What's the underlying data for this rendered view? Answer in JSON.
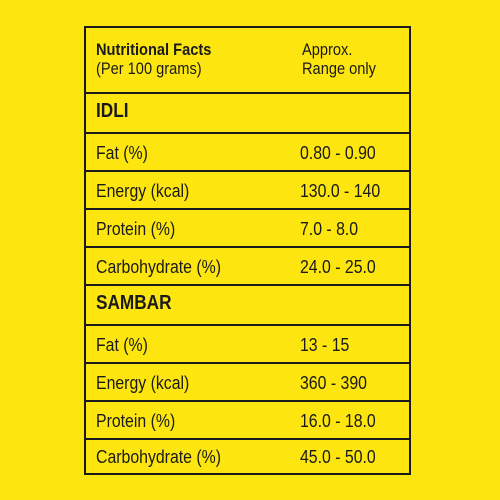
{
  "header": {
    "title": "Nutritional Facts",
    "subtitle": "(Per 100 grams)",
    "note_line1": "Approx.",
    "note_line2": "Range only"
  },
  "sections": [
    {
      "name": "IDLI",
      "rows": [
        {
          "label": "Fat (%)",
          "value": "0.80 - 0.90"
        },
        {
          "label": "Energy (kcal)",
          "value": "130.0 - 140"
        },
        {
          "label": "Protein (%)",
          "value": "7.0 - 8.0"
        },
        {
          "label": "Carbohydrate (%)",
          "value": "24.0 - 25.0"
        }
      ]
    },
    {
      "name": "SAMBAR",
      "rows": [
        {
          "label": "Fat (%)",
          "value": "13 - 15"
        },
        {
          "label": "Energy (kcal)",
          "value": "360 - 390"
        },
        {
          "label": "Protein (%)",
          "value": "16.0 - 18.0"
        },
        {
          "label": "Carbohydrate (%)",
          "value": "45.0 - 50.0"
        }
      ]
    }
  ],
  "colors": {
    "background": "#fde60f",
    "ink": "#1a1a1a"
  }
}
